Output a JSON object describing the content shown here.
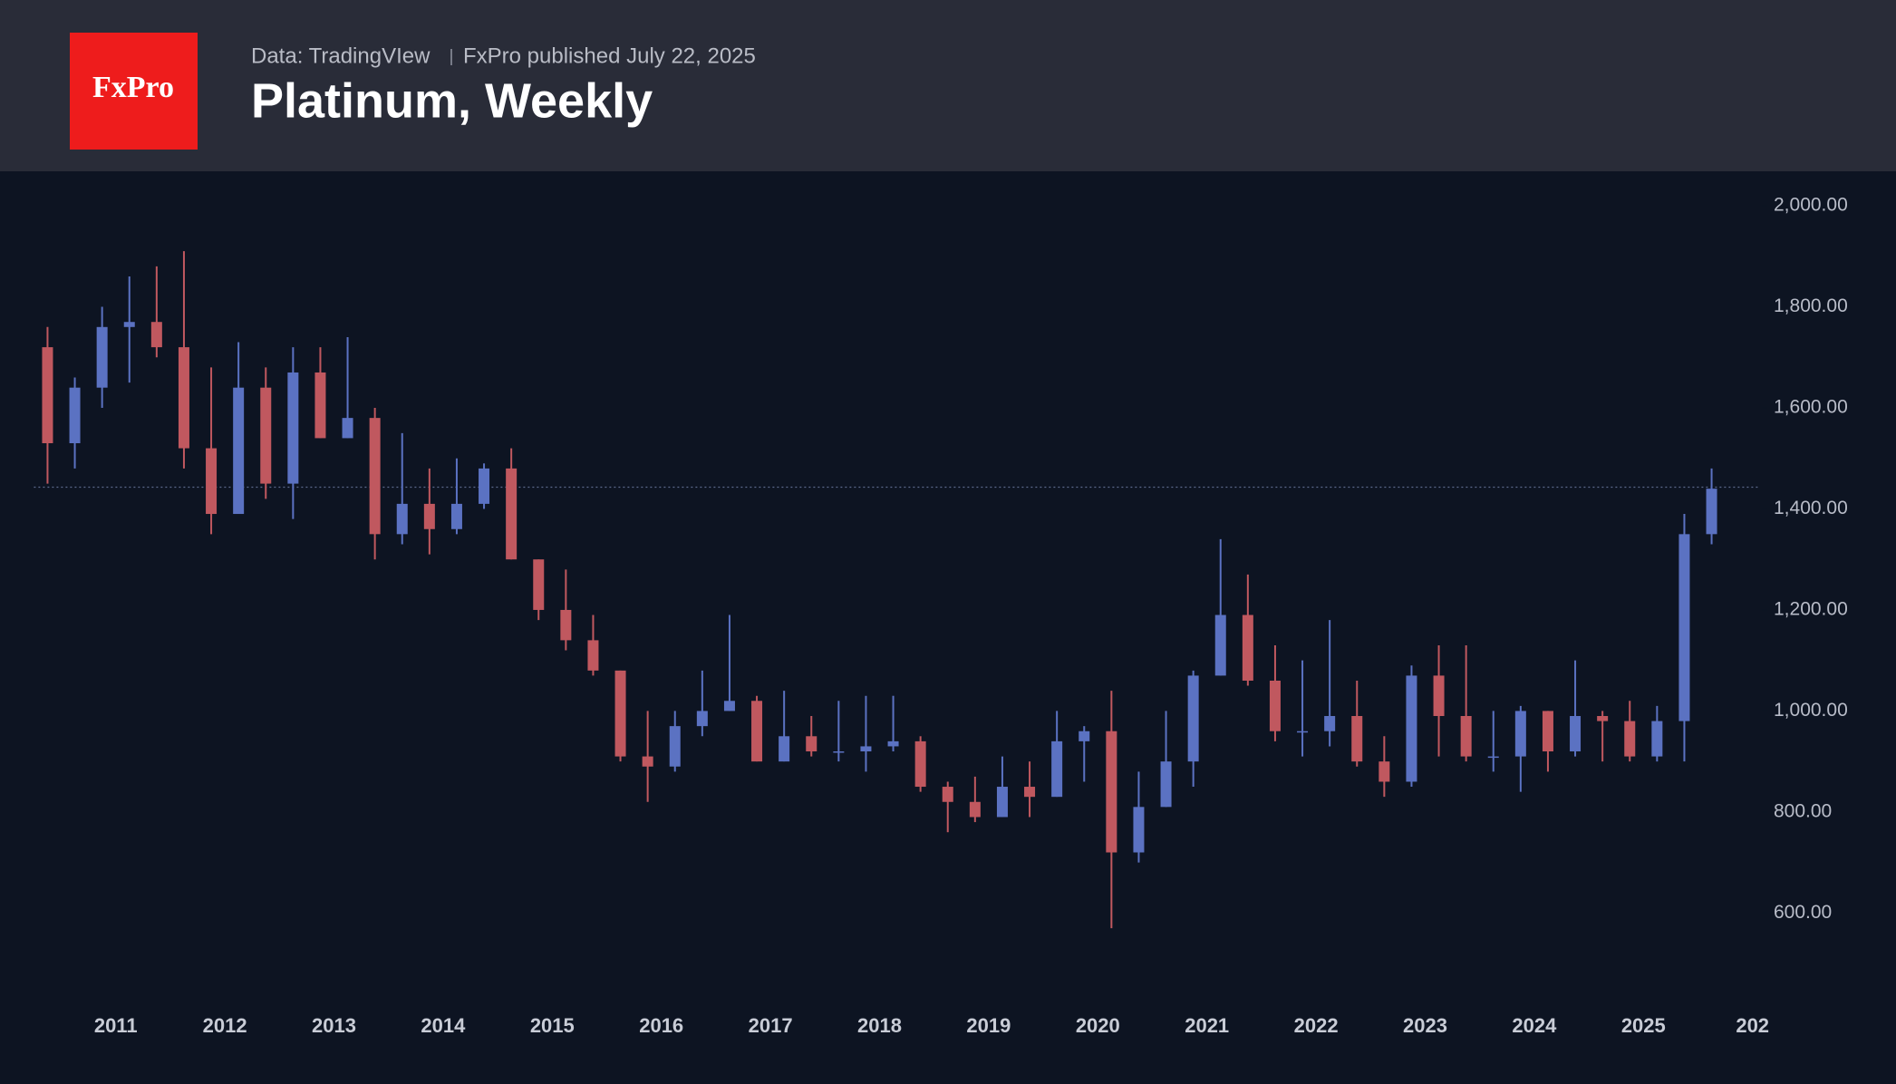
{
  "header": {
    "logo": "FxPro",
    "source": "Data: TradingVIew",
    "published": "FxPro published July 22, 2025"
  },
  "chart_data": {
    "type": "candlestick",
    "title": "Platinum, Weekly",
    "categories": [
      null,
      null,
      null,
      "2011",
      null,
      null,
      null,
      "2012",
      null,
      null,
      null,
      "2013",
      null,
      null,
      null,
      "2014",
      null,
      null,
      null,
      "2015",
      null,
      null,
      null,
      "2016",
      null,
      null,
      null,
      "2017",
      null,
      null,
      null,
      "2018",
      null,
      null,
      null,
      "2019",
      null,
      null,
      null,
      "2020",
      null,
      null,
      null,
      "2021",
      null,
      null,
      null,
      "2022",
      null,
      null,
      null,
      "2023",
      null,
      null,
      null,
      "2024",
      null,
      null,
      null,
      "2025",
      null,
      null,
      null,
      "202"
    ],
    "open": [
      1720,
      1530,
      1640,
      1760,
      1770,
      1720,
      1520,
      1390,
      1640,
      1450,
      1670,
      1540,
      1580,
      1350,
      1410,
      1360,
      1410,
      1480,
      1300,
      1200,
      1140,
      1080,
      910,
      890,
      970,
      1000,
      1020,
      900,
      950,
      920,
      920,
      930,
      940,
      850,
      820,
      790,
      850,
      830,
      940,
      960,
      720,
      810,
      900,
      1070,
      1190,
      1060,
      960,
      960,
      990,
      900,
      860,
      1070,
      990,
      910,
      910,
      1000,
      920,
      990,
      980,
      910,
      980,
      1350,
      null,
      null
    ],
    "high": [
      1760,
      1660,
      1800,
      1860,
      1880,
      1910,
      1680,
      1730,
      1680,
      1720,
      1720,
      1740,
      1600,
      1550,
      1480,
      1500,
      1490,
      1520,
      1300,
      1280,
      1190,
      1080,
      1000,
      1000,
      1080,
      1190,
      1030,
      1040,
      990,
      1020,
      1030,
      1030,
      950,
      860,
      870,
      910,
      900,
      1000,
      970,
      1040,
      880,
      1000,
      1080,
      1340,
      1270,
      1130,
      1100,
      1180,
      1060,
      950,
      1090,
      1130,
      1130,
      1000,
      1010,
      1000,
      1100,
      1000,
      1020,
      1010,
      1390,
      1480,
      null,
      null
    ],
    "low": [
      1450,
      1480,
      1600,
      1650,
      1700,
      1480,
      1350,
      1390,
      1420,
      1380,
      1540,
      1540,
      1300,
      1330,
      1310,
      1350,
      1400,
      1300,
      1180,
      1120,
      1070,
      900,
      820,
      880,
      950,
      1000,
      900,
      900,
      910,
      900,
      880,
      920,
      840,
      760,
      780,
      790,
      790,
      830,
      860,
      570,
      700,
      810,
      850,
      1070,
      1050,
      940,
      910,
      930,
      890,
      830,
      850,
      910,
      900,
      880,
      840,
      880,
      910,
      900,
      900,
      900,
      900,
      1330,
      null,
      null
    ],
    "close": [
      1530,
      1640,
      1760,
      1770,
      1720,
      1520,
      1390,
      1640,
      1450,
      1670,
      1540,
      1580,
      1350,
      1410,
      1360,
      1410,
      1480,
      1300,
      1200,
      1140,
      1080,
      910,
      890,
      970,
      1000,
      1020,
      900,
      950,
      920,
      920,
      930,
      940,
      850,
      820,
      790,
      850,
      830,
      940,
      960,
      720,
      810,
      900,
      1070,
      1190,
      1060,
      960,
      960,
      990,
      900,
      860,
      1070,
      990,
      910,
      910,
      1000,
      920,
      990,
      980,
      910,
      980,
      1350,
      1440,
      null,
      null
    ],
    "up_color": "#5b72c2",
    "down_color": "#c0585f",
    "price_line": 1443,
    "ylim": [
      450,
      2070
    ],
    "yticks": [
      {
        "value": 600,
        "label": "600.00"
      },
      {
        "value": 800,
        "label": "800.00"
      },
      {
        "value": 1000,
        "label": "1,000.00"
      },
      {
        "value": 1200,
        "label": "1,200.00"
      },
      {
        "value": 1400,
        "label": "1,400.00"
      },
      {
        "value": 1600,
        "label": "1,600.00"
      },
      {
        "value": 1800,
        "label": "1,800.00"
      },
      {
        "value": 2000,
        "label": "2,000.00"
      }
    ]
  }
}
